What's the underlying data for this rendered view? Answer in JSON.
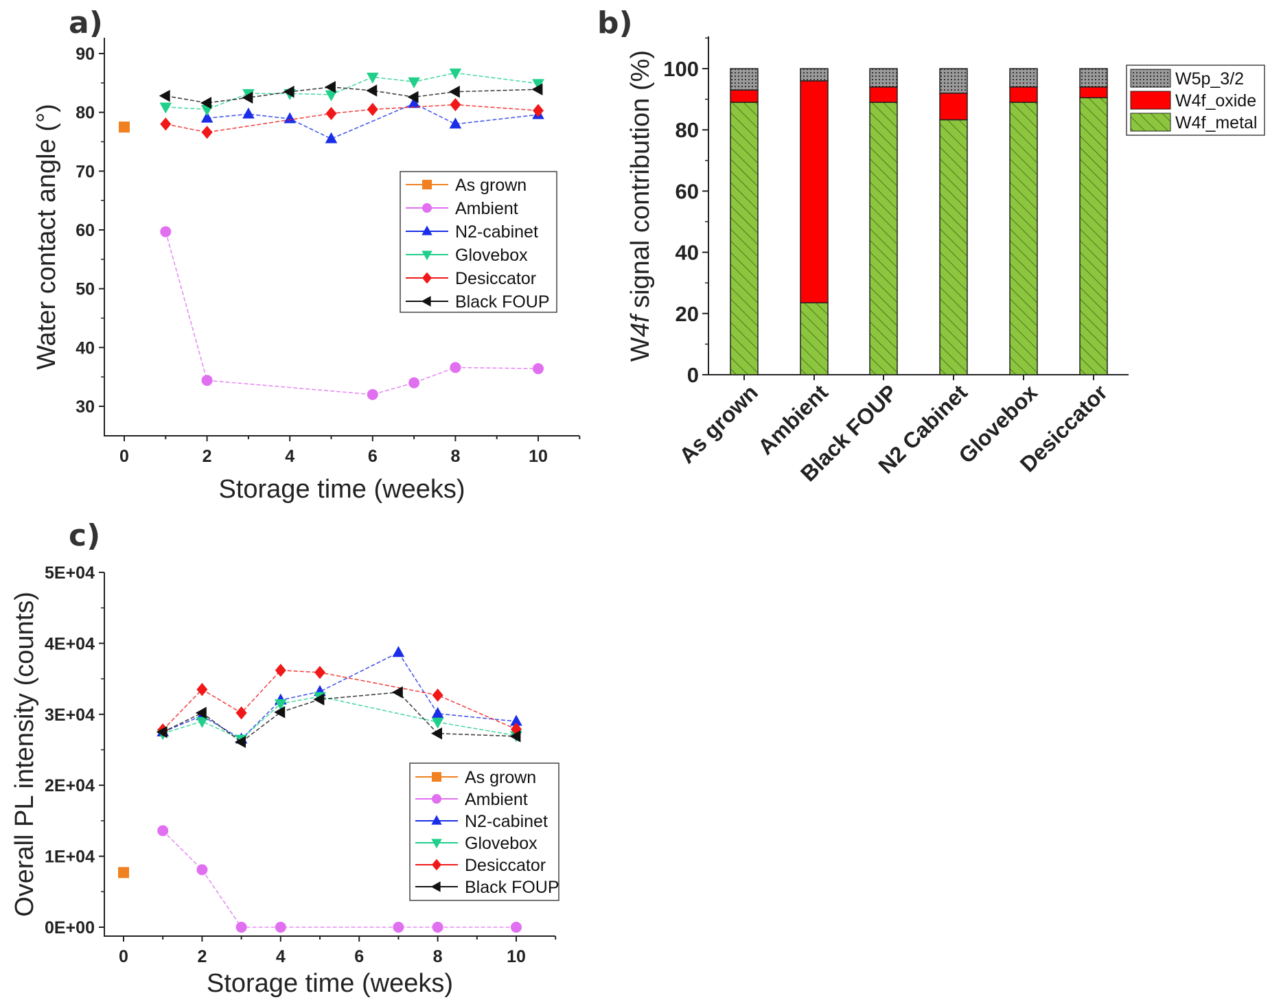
{
  "chart_data": [
    {
      "panel_label": "a)",
      "type": "line",
      "xlabel": "Storage time (weeks)",
      "ylabel": "Water contact angle (°)",
      "xlim": [
        -0.5,
        11
      ],
      "ylim": [
        25,
        90
      ],
      "xticks": [
        0,
        2,
        4,
        6,
        8,
        10
      ],
      "yticks": [
        30,
        40,
        50,
        60,
        70,
        80,
        90
      ],
      "legend": "center-right",
      "series": [
        {
          "name": "As grown",
          "color": "#f08020",
          "marker": "square",
          "x": [
            0
          ],
          "y": [
            77.5
          ]
        },
        {
          "name": "Ambient",
          "color": "#e070f0",
          "marker": "circle",
          "x": [
            1,
            2,
            6,
            7,
            8,
            10
          ],
          "y": [
            59.7,
            34.4,
            32,
            34,
            36.6,
            36.4
          ]
        },
        {
          "name": "N2-cabinet",
          "color": "#1a2ee8",
          "marker": "triangle-up",
          "x": [
            2,
            3,
            4,
            5,
            7,
            8,
            10
          ],
          "y": [
            79,
            79.7,
            78.9,
            75.5,
            81.5,
            78,
            79.6
          ]
        },
        {
          "name": "Glovebox",
          "color": "#20d08a",
          "marker": "triangle-down",
          "x": [
            1,
            2,
            3,
            4,
            5,
            6,
            7,
            8,
            10
          ],
          "y": [
            80.9,
            80.5,
            83.2,
            83.2,
            83,
            86,
            85.2,
            86.7,
            84.9
          ]
        },
        {
          "name": "Desiccator",
          "color": "#f01818",
          "marker": "diamond",
          "x": [
            1,
            2,
            5,
            6,
            8,
            10
          ],
          "y": [
            78,
            76.6,
            79.8,
            80.5,
            81.3,
            80.3
          ]
        },
        {
          "name": "Black FOUP",
          "color": "#111111",
          "marker": "triangle-left",
          "x": [
            1,
            2,
            3,
            4,
            5,
            6,
            7,
            8,
            10
          ],
          "y": [
            82.8,
            81.6,
            82.5,
            83.5,
            84.3,
            83.7,
            82.6,
            83.5,
            83.9
          ]
        }
      ]
    },
    {
      "panel_label": "b)",
      "type": "bar",
      "stacked": true,
      "ylabel_parts": [
        "W",
        "4f",
        " signal contribution (%)"
      ],
      "ylim": [
        0,
        110
      ],
      "yticks": [
        0,
        20,
        40,
        60,
        80,
        100
      ],
      "legend": "top-right",
      "categories": [
        "As grown",
        "Ambient",
        "Black FOUP",
        "N2 Cabinet",
        "Glovebox",
        "Desiccator"
      ],
      "series": [
        {
          "name": "W4f_metal",
          "color": "#8cc63f",
          "pattern": "hatch",
          "values": [
            89,
            23.5,
            89,
            83.3,
            89,
            90.5
          ]
        },
        {
          "name": "W4f_oxide",
          "color": "#ff0000",
          "values": [
            4,
            72.5,
            5,
            8.7,
            5,
            3.5
          ]
        },
        {
          "name": "W5p_3/2",
          "color": "#808080",
          "pattern": "dots",
          "values": [
            7,
            4,
            6,
            8,
            6,
            6
          ]
        }
      ]
    },
    {
      "panel_label": "c)",
      "type": "line",
      "xlabel": "Storage time (weeks)",
      "ylabel": "Overall PL intensity (counts)",
      "xlim": [
        -0.5,
        11
      ],
      "ylim": [
        -1300,
        50000
      ],
      "xticks": [
        0,
        2,
        4,
        6,
        8,
        10
      ],
      "yticks": [
        0,
        10000,
        20000,
        30000,
        40000,
        50000
      ],
      "ytick_labels": [
        "0E+00",
        "1E+04",
        "2E+04",
        "3E+04",
        "4E+04",
        "5E+04"
      ],
      "legend": "lower-right",
      "series": [
        {
          "name": "As grown",
          "color": "#f08020",
          "marker": "square",
          "x": [
            0
          ],
          "y": [
            7700
          ]
        },
        {
          "name": "Ambient",
          "color": "#e070f0",
          "marker": "circle",
          "x": [
            1,
            2,
            3,
            4,
            7,
            8,
            10
          ],
          "y": [
            13600,
            8100,
            0,
            0,
            0,
            0,
            0
          ]
        },
        {
          "name": "N2-cabinet",
          "color": "#1a2ee8",
          "marker": "triangle-up",
          "x": [
            1,
            2,
            3,
            4,
            5,
            7,
            8,
            10
          ],
          "y": [
            27500,
            29800,
            26500,
            32000,
            33200,
            38700,
            30100,
            29000
          ]
        },
        {
          "name": "Glovebox",
          "color": "#20d08a",
          "marker": "triangle-down",
          "x": [
            1,
            2,
            3,
            4,
            5,
            8,
            10
          ],
          "y": [
            27300,
            29000,
            26500,
            31500,
            32500,
            28900,
            27000
          ]
        },
        {
          "name": "Desiccator",
          "color": "#f01818",
          "marker": "diamond",
          "x": [
            1,
            2,
            3,
            4,
            5,
            8,
            10
          ],
          "y": [
            27800,
            33500,
            30200,
            36200,
            35900,
            32700,
            27900
          ]
        },
        {
          "name": "Black FOUP",
          "color": "#111111",
          "marker": "triangle-left",
          "x": [
            1,
            2,
            3,
            4,
            5,
            7,
            8,
            10
          ],
          "y": [
            27500,
            30200,
            26100,
            30300,
            32100,
            33100,
            27300,
            26900
          ]
        }
      ]
    }
  ]
}
